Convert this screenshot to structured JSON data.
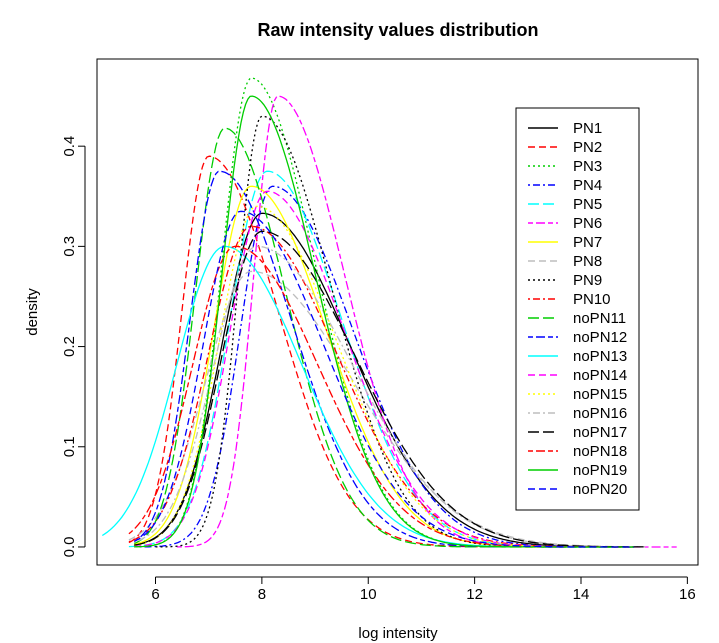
{
  "chart_data": {
    "type": "line",
    "title": "Raw intensity values distribution",
    "xlabel": "log intensity",
    "ylabel": "density",
    "xlim": [
      4.9,
      16.2
    ],
    "ylim": [
      -0.018,
      0.487
    ],
    "xticks": [
      6,
      8,
      10,
      12,
      14,
      16
    ],
    "yticks": [
      0.0,
      0.1,
      0.2,
      0.3,
      0.4
    ],
    "ytick_labels": [
      "0.0",
      "0.1",
      "0.2",
      "0.3",
      "0.4"
    ],
    "grid": false,
    "legend_position": "top-right",
    "series": [
      {
        "name": "PN1",
        "color": "#000000",
        "dash": "solid",
        "peak_x": 8.0,
        "peak_y": 0.333,
        "x_start": 5.6,
        "left_sd": 0.75,
        "right_sd": 1.65,
        "x_end": 15.2
      },
      {
        "name": "PN2",
        "color": "#ff0000",
        "dash": "dashed",
        "peak_x": 7.0,
        "peak_y": 0.39,
        "x_start": 5.5,
        "left_sd": 0.5,
        "right_sd": 1.3,
        "x_end": 15.0
      },
      {
        "name": "PN3",
        "color": "#00cd00",
        "dash": "dotted",
        "peak_x": 7.8,
        "peak_y": 0.468,
        "x_start": 5.6,
        "left_sd": 0.55,
        "right_sd": 1.2,
        "x_end": 15.0
      },
      {
        "name": "PN4",
        "color": "#0000ff",
        "dash": "dotdash",
        "peak_x": 8.2,
        "peak_y": 0.36,
        "x_start": 5.7,
        "left_sd": 0.6,
        "right_sd": 1.5,
        "x_end": 15.0
      },
      {
        "name": "PN5",
        "color": "#00ffff",
        "dash": "longdash",
        "peak_x": 8.1,
        "peak_y": 0.375,
        "x_start": 5.5,
        "left_sd": 0.7,
        "right_sd": 1.4,
        "x_end": 15.0
      },
      {
        "name": "PN6",
        "color": "#ff00ff",
        "dash": "twodash",
        "peak_x": 8.3,
        "peak_y": 0.45,
        "x_start": 6.4,
        "left_sd": 0.45,
        "right_sd": 1.25,
        "x_end": 15.8
      },
      {
        "name": "PN7",
        "color": "#ffff00",
        "dash": "solid",
        "peak_x": 7.8,
        "peak_y": 0.36,
        "x_start": 5.6,
        "left_sd": 0.7,
        "right_sd": 1.4,
        "x_end": 15.0
      },
      {
        "name": "PN8",
        "color": "#bebebe",
        "dash": "dashed",
        "peak_x": 7.8,
        "peak_y": 0.275,
        "x_start": 5.5,
        "left_sd": 0.85,
        "right_sd": 1.9,
        "x_end": 15.2
      },
      {
        "name": "PN9",
        "color": "#000000",
        "dash": "dotted",
        "peak_x": 8.0,
        "peak_y": 0.43,
        "x_start": 6.0,
        "left_sd": 0.45,
        "right_sd": 1.3,
        "x_end": 15.0
      },
      {
        "name": "PN10",
        "color": "#ff0000",
        "dash": "dotdash",
        "peak_x": 7.8,
        "peak_y": 0.32,
        "x_start": 5.5,
        "left_sd": 0.8,
        "right_sd": 1.6,
        "x_end": 15.0
      },
      {
        "name": "noPN11",
        "color": "#00cd00",
        "dash": "longdash",
        "peak_x": 7.3,
        "peak_y": 0.418,
        "x_start": 5.6,
        "left_sd": 0.55,
        "right_sd": 1.15,
        "x_end": 15.0
      },
      {
        "name": "noPN12",
        "color": "#0000ff",
        "dash": "twodash",
        "peak_x": 7.2,
        "peak_y": 0.375,
        "x_start": 5.6,
        "left_sd": 0.55,
        "right_sd": 1.35,
        "x_end": 15.0
      },
      {
        "name": "noPN13",
        "color": "#00ffff",
        "dash": "solid",
        "peak_x": 7.3,
        "peak_y": 0.3,
        "x_start": 5.0,
        "left_sd": 0.9,
        "right_sd": 1.45,
        "x_end": 15.0
      },
      {
        "name": "noPN14",
        "color": "#ff00ff",
        "dash": "dashed",
        "peak_x": 8.1,
        "peak_y": 0.355,
        "x_start": 5.6,
        "left_sd": 0.7,
        "right_sd": 1.45,
        "x_end": 15.0
      },
      {
        "name": "noPN15",
        "color": "#ffff00",
        "dash": "dotted",
        "peak_x": 7.9,
        "peak_y": 0.34,
        "x_start": 5.6,
        "left_sd": 0.7,
        "right_sd": 1.5,
        "x_end": 15.0
      },
      {
        "name": "noPN16",
        "color": "#bebebe",
        "dash": "dotdash",
        "peak_x": 7.9,
        "peak_y": 0.3,
        "x_start": 5.6,
        "left_sd": 0.8,
        "right_sd": 1.8,
        "x_end": 15.2
      },
      {
        "name": "noPN17",
        "color": "#000000",
        "dash": "longdash",
        "peak_x": 8.0,
        "peak_y": 0.315,
        "x_start": 5.6,
        "left_sd": 0.75,
        "right_sd": 1.75,
        "x_end": 15.2
      },
      {
        "name": "noPN18",
        "color": "#ff0000",
        "dash": "twodash",
        "peak_x": 7.5,
        "peak_y": 0.3,
        "x_start": 5.5,
        "left_sd": 0.8,
        "right_sd": 1.55,
        "x_end": 15.0
      },
      {
        "name": "noPN19",
        "color": "#00cd00",
        "dash": "solid",
        "peak_x": 7.8,
        "peak_y": 0.45,
        "x_start": 5.6,
        "left_sd": 0.55,
        "right_sd": 1.2,
        "x_end": 15.0
      },
      {
        "name": "noPN20",
        "color": "#0000ff",
        "dash": "dashed",
        "peak_x": 7.6,
        "peak_y": 0.335,
        "x_start": 5.6,
        "left_sd": 0.7,
        "right_sd": 1.55,
        "x_end": 15.0
      }
    ]
  }
}
